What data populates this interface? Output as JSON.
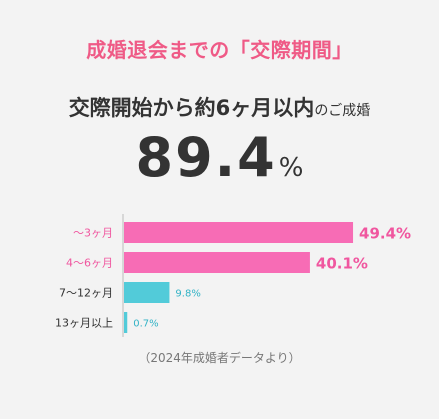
{
  "heading": "成婚退会までの「交際期間」",
  "subheading": {
    "main": "交際開始から約6ヶ月以内",
    "suffix": "のご成婚"
  },
  "result": {
    "value": "89.4",
    "unit": "%"
  },
  "source_note": "（2024年成婚者データより）",
  "colors": {
    "heading": "#ef5a86",
    "pink_bar": "#f76cb5",
    "pink_label": "#f0569f",
    "cyan_bar": "#52cbd9",
    "cyan_label": "#33b3c6",
    "axis": "#bbbbbb"
  },
  "chart_data": {
    "type": "bar",
    "orientation": "horizontal",
    "categories": [
      "〜3ヶ月",
      "4〜6ヶ月",
      "7〜12ヶ月",
      "13ヶ月以上"
    ],
    "values": [
      49.4,
      40.1,
      9.8,
      0.7
    ],
    "value_labels": [
      "49.4%",
      "40.1%",
      "9.8%",
      "0.7%"
    ],
    "highlight": [
      true,
      true,
      false,
      false
    ],
    "xlim": [
      0,
      55
    ],
    "grid": false
  }
}
